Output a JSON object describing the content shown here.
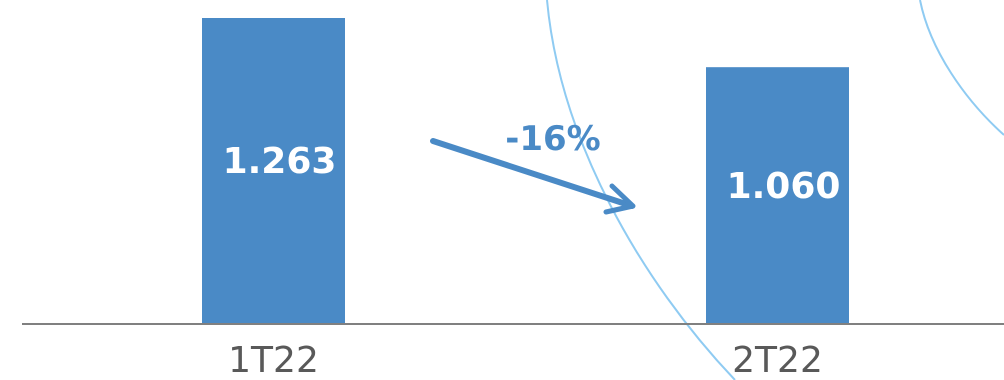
{
  "chart_data": {
    "type": "bar",
    "categories": [
      "1T22",
      "2T22"
    ],
    "values": [
      1263,
      1060
    ],
    "value_labels": [
      "1.263",
      "1.060"
    ],
    "annotation": {
      "text": "-16%",
      "from": "1T22",
      "to": "2T22"
    },
    "title": "",
    "xlabel": "",
    "ylabel": "",
    "ylim": [
      0,
      1263
    ],
    "grid": false,
    "legend": "none"
  },
  "colors": {
    "bar": "#4A8AC6",
    "axis": "#808080",
    "arrow": "#4A8AC6",
    "decorative_arc": "#8FCBF2",
    "category_text": "#595959",
    "value_text": "#ffffff"
  }
}
